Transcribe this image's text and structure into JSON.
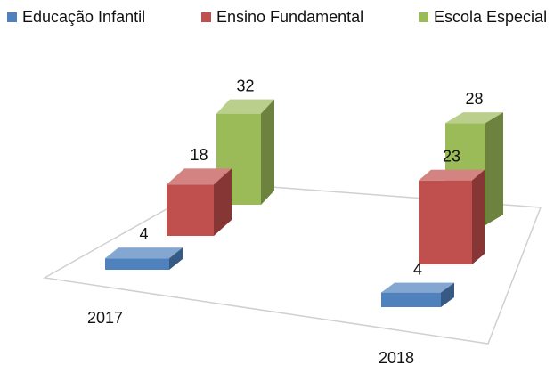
{
  "chart_data": {
    "type": "bar3d",
    "categories": [
      "2017",
      "2018"
    ],
    "series": [
      {
        "name": "Educação Infantil",
        "color": "#4f81bd",
        "values": [
          4,
          4
        ]
      },
      {
        "name": "Ensino Fundamental",
        "color": "#c0504d",
        "values": [
          18,
          23
        ]
      },
      {
        "name": "Escola Especial",
        "color": "#9bbb59",
        "values": [
          32,
          28
        ]
      }
    ]
  }
}
